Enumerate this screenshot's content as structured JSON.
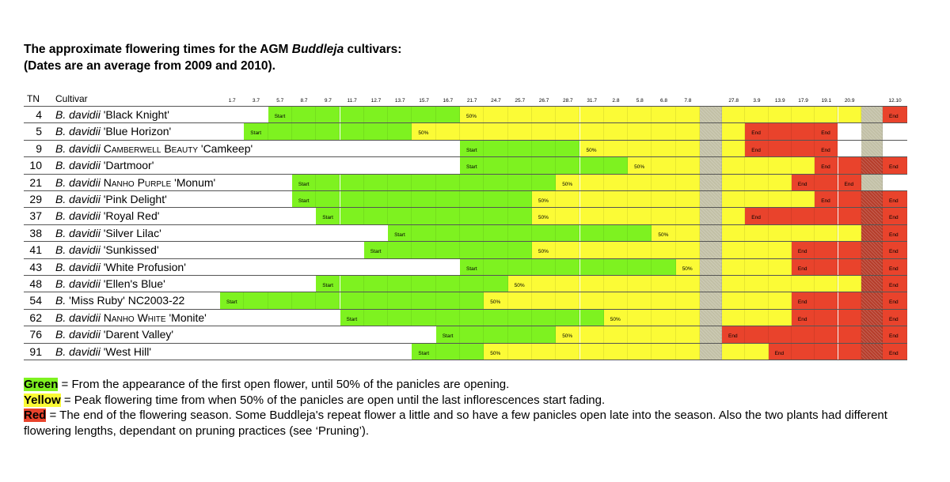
{
  "title_lines": [
    [
      {
        "text": "The approximate flowering times for the AGM "
      },
      {
        "text": "Buddleja",
        "style": "italic"
      },
      {
        "text": " cultivars:"
      }
    ],
    [
      {
        "text": "(Dates are an average from 2009 and 2010)."
      }
    ]
  ],
  "table": {
    "header": {
      "tn": "TN",
      "cultivar": "Cultivar",
      "dates": [
        "1.7",
        "3.7",
        "5.7",
        "8.7",
        "9.7",
        "11.7",
        "12.7",
        "13.7",
        "15.7",
        "16.7",
        "21.7",
        "24.7",
        "25.7",
        "26.7",
        "28.7",
        "31.7",
        "2.8",
        "5.8",
        "6.8",
        "7.8",
        null,
        "27.8",
        "3.9",
        "13.9",
        "17.9",
        "19.1",
        "20.9",
        null,
        "12.10"
      ]
    },
    "palette": {
      "W": "#ffffff",
      "G": "#7ef220",
      "Y": "#fbfb36",
      "R": "#e9432c",
      "X": "#c2c0a6",
      "D": "#b63d2b"
    },
    "rows": [
      {
        "tn": "4",
        "cultivar": [
          {
            "text": "B. davidii",
            "style": "italic"
          },
          {
            "text": " 'Black Knight'"
          }
        ],
        "cells": "WWGGGGGGGGYYYYYYYYYYXYYYYYYXR",
        "labels": [
          {
            "col": 2,
            "text": "Start"
          },
          {
            "col": 10,
            "text": "50%"
          },
          {
            "col": 28,
            "text": "End"
          }
        ]
      },
      {
        "tn": "5",
        "cultivar": [
          {
            "text": "B. davidii",
            "style": "italic"
          },
          {
            "text": " 'Blue Horizon'"
          }
        ],
        "cells": "WGGGGGGGYYYYYYYYYYYYXYRRRRWXW",
        "labels": [
          {
            "col": 1,
            "text": "Start"
          },
          {
            "col": 8,
            "text": "50%"
          },
          {
            "col": 22,
            "text": "End"
          },
          {
            "col": 25,
            "text": "End"
          }
        ]
      },
      {
        "tn": "9",
        "cultivar": [
          {
            "text": "B. davidii",
            "style": "italic"
          },
          {
            "text": " "
          },
          {
            "text": "Camberwell Beauty",
            "style": "smallcaps"
          },
          {
            "text": " 'Camkeep'"
          }
        ],
        "cells": "WWWWWWWWWWGGGGGYYYYYXYRRRRWXW",
        "labels": [
          {
            "col": 10,
            "text": "Start"
          },
          {
            "col": 15,
            "text": "50%"
          },
          {
            "col": 22,
            "text": "End"
          },
          {
            "col": 25,
            "text": "End"
          }
        ]
      },
      {
        "tn": "10",
        "cultivar": [
          {
            "text": "B. davidii",
            "style": "italic"
          },
          {
            "text": " 'Dartmoor'"
          }
        ],
        "cells": "WWWWWWWWWWGGGGGGGYYYXYYYYRRDR",
        "labels": [
          {
            "col": 10,
            "text": "Start"
          },
          {
            "col": 17,
            "text": "50%"
          },
          {
            "col": 25,
            "text": "End"
          },
          {
            "col": 28,
            "text": "End"
          }
        ]
      },
      {
        "tn": "21",
        "cultivar": [
          {
            "text": "B. davidii",
            "style": "italic"
          },
          {
            "text": " "
          },
          {
            "text": "Nanho Purple",
            "style": "smallcaps"
          },
          {
            "text": " 'Monum'"
          }
        ],
        "cells": "WWWGGGGGGGGGGGYYYYYYXYYYRRRXW",
        "labels": [
          {
            "col": 3,
            "text": "Start"
          },
          {
            "col": 14,
            "text": "50%"
          },
          {
            "col": 24,
            "text": "End"
          },
          {
            "col": 26,
            "text": "End"
          }
        ]
      },
      {
        "tn": "29",
        "cultivar": [
          {
            "text": "B. davidii",
            "style": "italic"
          },
          {
            "text": " 'Pink Delight'"
          }
        ],
        "cells": "WWWGGGGGGGGGGYYYYYYYXYYYYRRDR",
        "labels": [
          {
            "col": 3,
            "text": "Start"
          },
          {
            "col": 13,
            "text": "50%"
          },
          {
            "col": 25,
            "text": "End"
          },
          {
            "col": 28,
            "text": "End"
          }
        ]
      },
      {
        "tn": "37",
        "cultivar": [
          {
            "text": "B. davidii",
            "style": "italic"
          },
          {
            "text": " 'Royal Red'"
          }
        ],
        "cells": "WWWWGGGGGGGGGYYYYYYYXYRRRRRDR",
        "labels": [
          {
            "col": 4,
            "text": "Start"
          },
          {
            "col": 13,
            "text": "50%"
          },
          {
            "col": 22,
            "text": "End"
          },
          {
            "col": 28,
            "text": "End"
          }
        ]
      },
      {
        "tn": "38",
        "cultivar": [
          {
            "text": "B. davidii",
            "style": "italic"
          },
          {
            "text": " 'Silver Lilac'"
          }
        ],
        "cells": "WWWWWWWGGGGGGGGGGGYYXYYYYYYDR",
        "labels": [
          {
            "col": 7,
            "text": "Start"
          },
          {
            "col": 18,
            "text": "50%"
          },
          {
            "col": 28,
            "text": "End"
          }
        ]
      },
      {
        "tn": "41",
        "cultivar": [
          {
            "text": "B. davidii",
            "style": "italic"
          },
          {
            "text": " 'Sunkissed'"
          }
        ],
        "cells": "WWWWWWGGGGGGGYYYYYYYXYYYRRRDR",
        "labels": [
          {
            "col": 6,
            "text": "Start"
          },
          {
            "col": 13,
            "text": "50%"
          },
          {
            "col": 24,
            "text": "End"
          },
          {
            "col": 28,
            "text": "End"
          }
        ]
      },
      {
        "tn": "43",
        "cultivar": [
          {
            "text": "B. davidii",
            "style": "italic"
          },
          {
            "text": " 'White Profusion'"
          }
        ],
        "cells": "WWWWWWWWWWGGGGGGGGGYXYYYRRRDR",
        "labels": [
          {
            "col": 10,
            "text": "Start"
          },
          {
            "col": 19,
            "text": "50%"
          },
          {
            "col": 24,
            "text": "End"
          },
          {
            "col": 28,
            "text": "End"
          }
        ]
      },
      {
        "tn": "48",
        "cultivar": [
          {
            "text": "B. davidii",
            "style": "italic"
          },
          {
            "text": " 'Ellen's Blue'"
          }
        ],
        "cells": "WWWWGGGGGGGGYYYYYYYYXYYYYYYDR",
        "labels": [
          {
            "col": 4,
            "text": "Start"
          },
          {
            "col": 12,
            "text": "50%"
          },
          {
            "col": 28,
            "text": "End"
          }
        ]
      },
      {
        "tn": "54",
        "cultivar": [
          {
            "text": "B.",
            "style": "italic"
          },
          {
            "text": " 'Miss Ruby' NC2003-22"
          }
        ],
        "cells": "GGGGGGGGGGGYYYYYYYYYXYYYRRRDR",
        "labels": [
          {
            "col": 0,
            "text": "Start"
          },
          {
            "col": 11,
            "text": "50%"
          },
          {
            "col": 24,
            "text": "End"
          },
          {
            "col": 28,
            "text": "End"
          }
        ]
      },
      {
        "tn": "62",
        "cultivar": [
          {
            "text": "B. davidii",
            "style": "italic"
          },
          {
            "text": " "
          },
          {
            "text": "Nanho White",
            "style": "smallcaps"
          },
          {
            "text": " 'Monite'"
          }
        ],
        "cells": "WWWWWGGGGGGGGGGGYYYYXYYYRRRDR",
        "labels": [
          {
            "col": 5,
            "text": "Start"
          },
          {
            "col": 16,
            "text": "50%"
          },
          {
            "col": 24,
            "text": "End"
          },
          {
            "col": 28,
            "text": "End"
          }
        ]
      },
      {
        "tn": "76",
        "cultivar": [
          {
            "text": "B. davidii",
            "style": "italic"
          },
          {
            "text": " 'Darent Valley'"
          }
        ],
        "cells": "WWWWWWWWWGGGGGYYYYYYXRRRRRRDR",
        "labels": [
          {
            "col": 9,
            "text": "Start"
          },
          {
            "col": 14,
            "text": "50%"
          },
          {
            "col": 21,
            "text": "End"
          },
          {
            "col": 28,
            "text": "End"
          }
        ]
      },
      {
        "tn": "91",
        "cultivar": [
          {
            "text": "B. davidii",
            "style": "italic"
          },
          {
            "text": " 'West Hill'"
          }
        ],
        "cells": "WWWWWWWWGGGYYYYYYYYYXYYRRRRDR",
        "labels": [
          {
            "col": 8,
            "text": "Start"
          },
          {
            "col": 11,
            "text": "50%"
          },
          {
            "col": 23,
            "text": "End"
          },
          {
            "col": 28,
            "text": "End"
          }
        ]
      }
    ]
  },
  "legend": [
    {
      "key": "Green",
      "color": "#7ef220",
      "text": " = From the appearance of the first open flower, until 50% of the panicles are opening."
    },
    {
      "key": "Yellow",
      "color": "#fbfb36",
      "text": " = Peak flowering time from when 50% of the panicles are open until the last inflorescences start fading."
    },
    {
      "key": "Red",
      "color": "#e9432c",
      "text": " = The end of the flowering season. Some Buddleja's repeat flower a little and so have a few panicles open late into the season. Also the two plants had different flowering lengths, dependant on pruning practices (see ‘Pruning’)."
    }
  ]
}
